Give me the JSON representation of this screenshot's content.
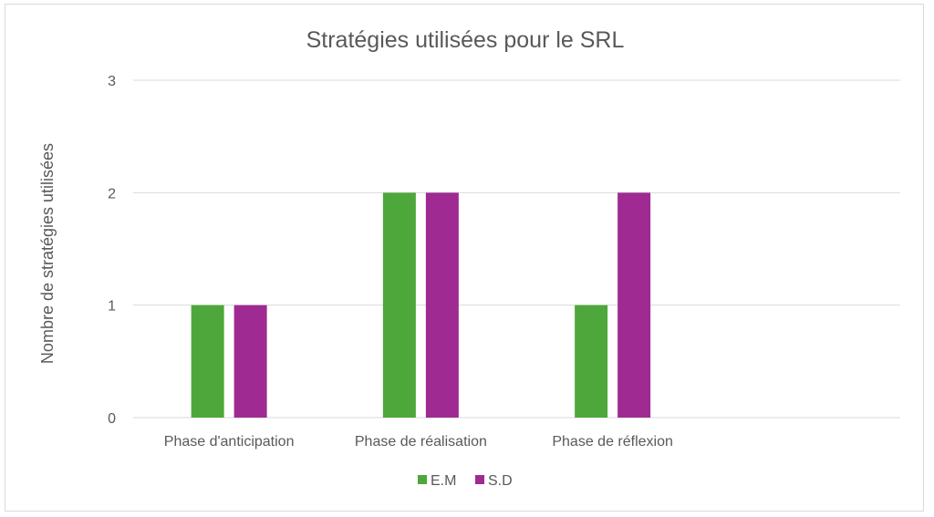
{
  "chart_data": {
    "type": "bar",
    "title": "Stratégies utilisées pour le SRL",
    "xlabel": "",
    "ylabel": "Nombre de stratégies utilisées",
    "categories": [
      "Phase d'anticipation",
      "Phase de réalisation",
      "Phase de réflexion",
      ""
    ],
    "series": [
      {
        "name": "E.M",
        "values": [
          1,
          2,
          1,
          null
        ],
        "color": "#4ea73b"
      },
      {
        "name": "S.D",
        "values": [
          1,
          2,
          2,
          null
        ],
        "color": "#9f2a92"
      }
    ],
    "ylim": [
      0,
      3
    ],
    "yticks": [
      "0",
      "1",
      "2",
      "3"
    ],
    "grid": true,
    "legend_position": "bottom"
  }
}
